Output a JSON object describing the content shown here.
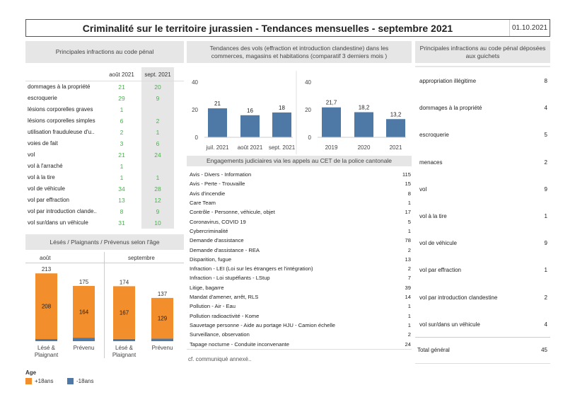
{
  "header": {
    "title": "Criminalité sur le territoire jurassien - Tendances mensuelles - septembre 2021",
    "date": "01.10.2021"
  },
  "penal": {
    "title": "Principales infractions au code pénal",
    "col1": "août 2021",
    "col2": "sept. 2021",
    "rows": [
      {
        "label": "dommages à la propriété",
        "a": "21",
        "b": "20"
      },
      {
        "label": "escroquerie",
        "a": "29",
        "b": "9"
      },
      {
        "label": "lésions corporelles graves",
        "a": "1",
        "b": ""
      },
      {
        "label": "lésions corporelles simples",
        "a": "6",
        "b": "2"
      },
      {
        "label": "utilisation frauduleuse d'u..",
        "a": "2",
        "b": "1"
      },
      {
        "label": "voies de fait",
        "a": "3",
        "b": "6"
      },
      {
        "label": "vol",
        "a": "21",
        "b": "24"
      },
      {
        "label": "vol à l'arraché",
        "a": "1",
        "b": ""
      },
      {
        "label": "vol à la tire",
        "a": "1",
        "b": "1"
      },
      {
        "label": "vol de véhicule",
        "a": "34",
        "b": "28"
      },
      {
        "label": "vol par effraction",
        "a": "13",
        "b": "12"
      },
      {
        "label": "vol par introduction clande..",
        "a": "8",
        "b": "9"
      },
      {
        "label": "vol sur/dans un véhicule",
        "a": "31",
        "b": "10"
      }
    ]
  },
  "lesés": {
    "title": "Lésés / Plaignants / Prévenus selon l'âge",
    "months": [
      "août",
      "septembre"
    ],
    "bars": [
      {
        "label": "Lésé & Plaignant",
        "total": "213",
        "adult": 208,
        "minor": 5,
        "adult_label": "208"
      },
      {
        "label": "Prévenu",
        "total": "175",
        "adult": 164,
        "minor": 11,
        "adult_label": "164"
      },
      {
        "label": "Lésé & Plaignant",
        "total": "174",
        "adult": 167,
        "minor": 7,
        "adult_label": "167"
      },
      {
        "label": "Prévenu",
        "total": "137",
        "adult": 129,
        "minor": 8,
        "adult_label": "129"
      }
    ],
    "legend_title": "Age",
    "legend": [
      {
        "label": "+18ans",
        "color": "#f28e2b"
      },
      {
        "label": "-18ans",
        "color": "#4e79a7"
      }
    ]
  },
  "vols": {
    "title": "Tendances des vols (effraction et introduction clandestine) dans les commerces, magasins et habitations (comparatif 3 derniers mois )",
    "left": {
      "ticks": [
        "40",
        "20",
        "0"
      ],
      "categories": [
        "juil. 2021",
        "août 2021",
        "sept. 2021"
      ],
      "values": [
        21,
        16,
        18
      ],
      "labels": [
        "21",
        "16",
        "18"
      ]
    },
    "right": {
      "ticks": [
        "40",
        "20",
        "0"
      ],
      "categories": [
        "2019",
        "2020",
        "2021"
      ],
      "values": [
        21.7,
        18.2,
        13.2
      ],
      "labels": [
        "21,7",
        "18,2",
        "13,2"
      ]
    }
  },
  "engagements": {
    "title": "Engagements judiciaires via les appels au CET de la police cantonale",
    "rows": [
      {
        "label": "Avis - Divers - Information",
        "value": "115"
      },
      {
        "label": "Avis - Perte - Trouvaille",
        "value": "15"
      },
      {
        "label": "Avis d'incendie",
        "value": "8"
      },
      {
        "label": "Care Team",
        "value": "1"
      },
      {
        "label": "Contrôle - Personne, véhicule, objet",
        "value": "17"
      },
      {
        "label": "Coronavirus, COVID 19",
        "value": "5"
      },
      {
        "label": "Cybercriminalité",
        "value": "1"
      },
      {
        "label": "Demande d'assistance",
        "value": "78"
      },
      {
        "label": "Demande d'assistance - REA",
        "value": "2"
      },
      {
        "label": "Disparition, fugue",
        "value": "13"
      },
      {
        "label": "Infraction - LEI (Loi sur les étrangers et l'intégration)",
        "value": "2"
      },
      {
        "label": "Infraction - Loi stupéfiants - LStup",
        "value": "7"
      },
      {
        "label": "Litige, bagarre",
        "value": "39"
      },
      {
        "label": "Mandat d'amener, arrêt, RLS",
        "value": "14"
      },
      {
        "label": "Pollution - Air - Eau",
        "value": "1"
      },
      {
        "label": "Pollution radioactivité - Kome",
        "value": "1"
      },
      {
        "label": "Sauvetage personne - Aide au portage HJU - Camion échelle",
        "value": "1"
      },
      {
        "label": "Surveillance, observation",
        "value": "2"
      },
      {
        "label": "Tapage nocturne - Conduite inconvenante",
        "value": "24"
      }
    ],
    "footnote": "cf. communiqué annexé.."
  },
  "guichets": {
    "title": "Principales infractions au code pénal déposées aux guichets",
    "rows": [
      {
        "label": "appropriation illégitime",
        "value": "8"
      },
      {
        "label": "dommages à la propriété",
        "value": "4"
      },
      {
        "label": "escroquerie",
        "value": "5"
      },
      {
        "label": "menaces",
        "value": "2"
      },
      {
        "label": "vol",
        "value": "9"
      },
      {
        "label": "vol à la tire",
        "value": "1"
      },
      {
        "label": "vol de véhicule",
        "value": "9"
      },
      {
        "label": "vol par effraction",
        "value": "1"
      },
      {
        "label": "vol par introduction clandestine",
        "value": "2"
      },
      {
        "label": "vol sur/dans un véhicule",
        "value": "4"
      }
    ],
    "total_label": "Total général",
    "total_value": "45"
  }
}
